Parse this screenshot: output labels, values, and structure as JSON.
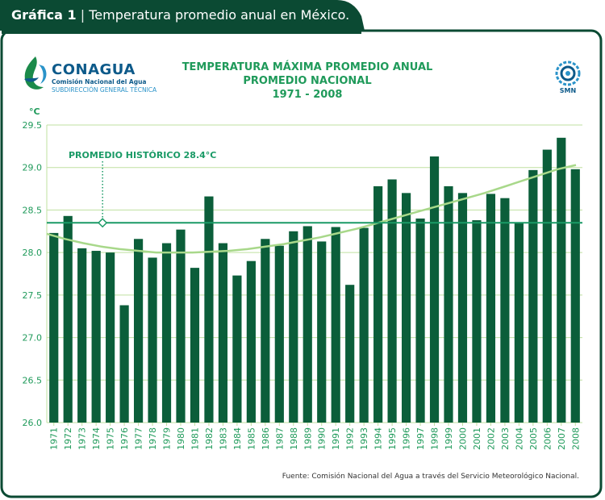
{
  "header": {
    "label_bold": "Gráfica 1",
    "separator": "|",
    "label_text": "Temperatura promedio anual en México."
  },
  "logo": {
    "name": "CONAGUA",
    "subtitle": "Comisión Nacional del Agua",
    "subtitle2": "SUBDIRECCIÓN GENERAL TÉCNICA"
  },
  "smn_logo": {
    "label": "SMN"
  },
  "colors": {
    "frame": "#0b4a33",
    "bar": "#0b5e3a",
    "reference_line": "#1a9a66",
    "trend": "#a8d88a",
    "grid": "#bfe0a0",
    "axis_text": "#1f9a5a",
    "title": "#1f9a5a"
  },
  "chart_data": {
    "type": "bar",
    "title": "TEMPERATURA MÁXIMA PROMEDIO ANUAL",
    "subtitle": "PROMEDIO NACIONAL",
    "period": "1971 - 2008",
    "ylabel": "°C",
    "ylim": [
      26.0,
      29.5
    ],
    "yticks": [
      "26.0",
      "26.5",
      "27.0",
      "27.5",
      "28.0",
      "28.5",
      "29.0",
      "29.5"
    ],
    "grid": true,
    "categories": [
      "1971",
      "1972",
      "1973",
      "1974",
      "1975",
      "1976",
      "1977",
      "1978",
      "1979",
      "1980",
      "1981",
      "1982",
      "1983",
      "1984",
      "1985",
      "1986",
      "1987",
      "1988",
      "1989",
      "1990",
      "1991",
      "1992",
      "1993",
      "1994",
      "1995",
      "1996",
      "1997",
      "1998",
      "1999",
      "2000",
      "2001",
      "2002",
      "2003",
      "2004",
      "2005",
      "2006",
      "2007",
      "2008"
    ],
    "values": [
      28.23,
      28.43,
      28.05,
      28.02,
      28.0,
      27.38,
      28.16,
      27.94,
      28.11,
      28.27,
      27.82,
      28.66,
      28.11,
      27.73,
      27.9,
      28.16,
      28.08,
      28.25,
      28.31,
      28.13,
      28.3,
      27.62,
      28.29,
      28.78,
      28.86,
      28.7,
      28.4,
      29.13,
      28.78,
      28.7,
      28.38,
      28.69,
      28.64,
      28.35,
      28.97,
      29.21,
      29.35,
      28.98
    ],
    "reference": {
      "label": "PROMEDIO HISTÓRICO 28.4°C",
      "value": 28.35
    },
    "trend": [
      28.22,
      28.16,
      28.11,
      28.07,
      28.04,
      28.02,
      28.0,
      28.0,
      28.0,
      28.01,
      28.02,
      28.04,
      28.07,
      28.1,
      28.14,
      28.18,
      28.23,
      28.28,
      28.34,
      28.4,
      28.46,
      28.52,
      28.58,
      28.64,
      28.7,
      28.77,
      28.84,
      28.91,
      28.98,
      29.03
    ]
  },
  "source": "Fuente: Comisión Nacional del Agua a través del Servicio Meteorológico Nacional."
}
